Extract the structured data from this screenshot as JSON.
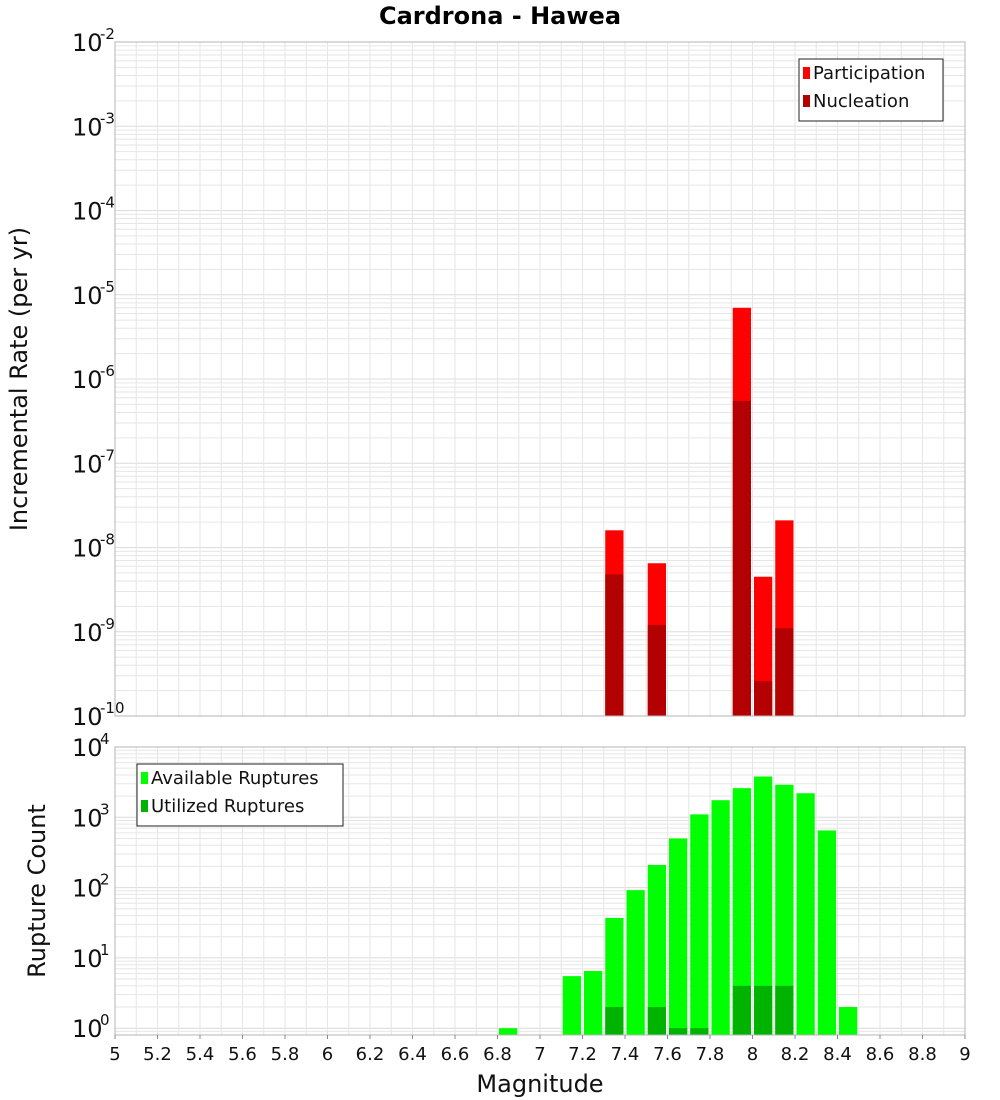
{
  "title": "Cardrona - Hawea",
  "colors": {
    "participation": "#ff0000",
    "nucleation": "#b30000",
    "available": "#00ff00",
    "utilized": "#00b300",
    "grid": "#e6e6e6"
  },
  "chart_data": [
    {
      "type": "bar",
      "ylabel": "Incremental Rate (per yr)",
      "xlabel": "",
      "yscale": "log",
      "ylim_exponents": [
        -10,
        -2
      ],
      "xlim": [
        5,
        9
      ],
      "bar_width": 0.1,
      "legend_position": "top-right",
      "series": [
        {
          "name": "Participation",
          "color_key": "participation",
          "x": [
            7.35,
            7.55,
            7.95,
            8.05,
            8.15
          ],
          "values": [
            1.6e-08,
            6.5e-09,
            7e-06,
            4.5e-09,
            2.1e-08
          ]
        },
        {
          "name": "Nucleation",
          "color_key": "nucleation",
          "x": [
            7.35,
            7.55,
            7.95,
            8.05,
            8.15
          ],
          "values": [
            4.8e-09,
            1.2e-09,
            5.5e-07,
            2.6e-10,
            1.1e-09
          ]
        }
      ]
    },
    {
      "type": "bar",
      "ylabel": "Rupture Count",
      "xlabel": "Magnitude",
      "yscale": "log",
      "ylim_exponents": [
        0,
        4
      ],
      "ylim": [
        0.8,
        10000
      ],
      "xlim": [
        5,
        9
      ],
      "bar_width": 0.1,
      "legend_position": "top-left",
      "xticks": [
        "5",
        "5.2",
        "5.4",
        "5.6",
        "5.8",
        "6",
        "6.2",
        "6.4",
        "6.6",
        "6.8",
        "7",
        "7.2",
        "7.4",
        "7.6",
        "7.8",
        "8",
        "8.2",
        "8.4",
        "8.6",
        "8.8",
        "9"
      ],
      "series": [
        {
          "name": "Available Ruptures",
          "color_key": "available",
          "x": [
            6.85,
            7.15,
            7.25,
            7.35,
            7.45,
            7.55,
            7.65,
            7.75,
            7.85,
            7.95,
            8.05,
            8.15,
            8.25,
            8.35,
            8.45
          ],
          "values": [
            1,
            5.5,
            6.5,
            37,
            92,
            210,
            500,
            1100,
            1750,
            2600,
            3800,
            2900,
            2200,
            650,
            2
          ]
        },
        {
          "name": "Utilized Ruptures",
          "color_key": "utilized",
          "x": [
            7.35,
            7.55,
            7.65,
            7.75,
            7.95,
            8.05,
            8.15
          ],
          "values": [
            2,
            2,
            1,
            1,
            4,
            4,
            4
          ]
        }
      ]
    }
  ]
}
